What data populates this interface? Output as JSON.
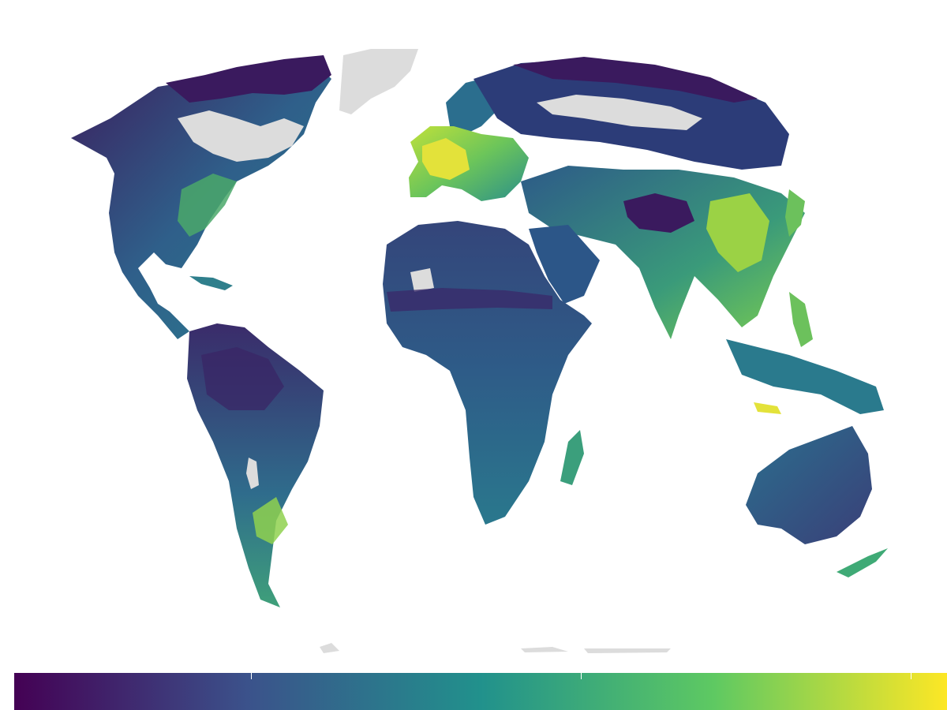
{
  "map": {
    "projection": "world",
    "background": "#ffffff",
    "no_data_color": "#dcdcdc",
    "palette": "viridis",
    "palette_stops": [
      "#440154",
      "#3b528b",
      "#21918c",
      "#5ec962",
      "#fde725"
    ]
  },
  "legend": {
    "orientation": "horizontal",
    "placement": "bottom",
    "tick_count": 3,
    "tick_labels": []
  }
}
